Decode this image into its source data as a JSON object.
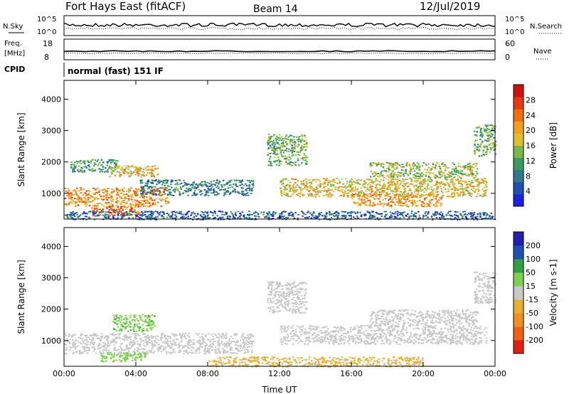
{
  "header": {
    "station": "Fort Hays East (fitACF)",
    "beam": "Beam 14",
    "date": "12/Jul/2019"
  },
  "panels": {
    "noise": {
      "left_label": "N.Sky",
      "right_label": "N.Search",
      "ticks_left": [
        "10^5",
        "10^0"
      ],
      "ticks_right": [
        "10^5",
        "10^0"
      ]
    },
    "freq": {
      "left_label_1": "Freq.",
      "left_label_2": "[MHz]",
      "right_label": "Nave",
      "ticks_left": [
        "18",
        "8"
      ],
      "ticks_right": [
        "60",
        "0"
      ]
    },
    "cpid": {
      "label": "CPID",
      "text": "normal (fast) 151 IF"
    }
  },
  "colors": {
    "power": [
      "#1f1fe0",
      "#1f4fb0",
      "#2f7a8a",
      "#3a9a60",
      "#7ab84a",
      "#e0c030",
      "#f0a020",
      "#f07010",
      "#e83a10",
      "#d01010"
    ],
    "velocity": [
      "#2020b0",
      "#2050b0",
      "#30a040",
      "#80d050",
      "#c8c8c8",
      "#e8b030",
      "#f09020",
      "#f06010",
      "#e02010"
    ]
  },
  "chart_data": [
    {
      "type": "heatmap",
      "title": "",
      "xlabel": "Time UT",
      "ylabel": "Slant Range [km]",
      "x_ticks": [
        "00:00",
        "04:00",
        "08:00",
        "12:00",
        "16:00",
        "20:00",
        "00:00"
      ],
      "y_ticks": [
        "1000",
        "2000",
        "3000",
        "4000"
      ],
      "ylim": [
        180,
        4600
      ],
      "colorbar_label": "Power [dB]",
      "colorbar_ticks": [
        "4",
        "8",
        "12",
        "16",
        "20",
        "24",
        "28"
      ],
      "colorbar_range": [
        0,
        30
      ],
      "regions": [
        {
          "t": [
            0.0,
            5.8
          ],
          "r": [
            600,
            1200
          ],
          "value": 20
        },
        {
          "t": [
            0.3,
            3.0
          ],
          "r": [
            1700,
            2100
          ],
          "value": 10
        },
        {
          "t": [
            2.5,
            5.2
          ],
          "r": [
            1550,
            1900
          ],
          "value": 18
        },
        {
          "t": [
            1.5,
            4.2
          ],
          "r": [
            300,
            600
          ],
          "value": 24
        },
        {
          "t": [
            4.2,
            10.5
          ],
          "r": [
            950,
            1450
          ],
          "value": 8
        },
        {
          "t": [
            11.3,
            13.5
          ],
          "r": [
            1900,
            2900
          ],
          "value": 12
        },
        {
          "t": [
            12.0,
            23.5
          ],
          "r": [
            900,
            1500
          ],
          "value": 17
        },
        {
          "t": [
            16.0,
            21.0
          ],
          "r": [
            600,
            1000
          ],
          "value": 20
        },
        {
          "t": [
            17.0,
            23.0
          ],
          "r": [
            1500,
            2000
          ],
          "value": 14
        },
        {
          "t": [
            22.8,
            24.0
          ],
          "r": [
            2200,
            3200
          ],
          "value": 12
        },
        {
          "t": [
            0.0,
            24.0
          ],
          "r": [
            180,
            450
          ],
          "value": 6
        }
      ]
    },
    {
      "type": "heatmap",
      "title": "",
      "xlabel": "Time UT",
      "ylabel": "Slant Range [km]",
      "x_ticks": [
        "00:00",
        "04:00",
        "08:00",
        "12:00",
        "16:00",
        "20:00",
        "00:00"
      ],
      "y_ticks": [
        "1000",
        "2000",
        "3000",
        "4000"
      ],
      "ylim": [
        180,
        4600
      ],
      "colorbar_label": "Velocity [m s-1]",
      "colorbar_ticks": [
        "200",
        "100",
        "50",
        "15",
        "-15",
        "-50",
        "-100",
        "-200"
      ],
      "colorbar_range": [
        -250,
        250
      ],
      "regions": [
        {
          "t": [
            0.0,
            10.5
          ],
          "r": [
            600,
            1250
          ],
          "value": 0
        },
        {
          "t": [
            2.7,
            5.0
          ],
          "r": [
            1300,
            1850
          ],
          "value": 70
        },
        {
          "t": [
            2.0,
            4.5
          ],
          "r": [
            350,
            650
          ],
          "value": 60
        },
        {
          "t": [
            11.3,
            13.5
          ],
          "r": [
            1900,
            2900
          ],
          "value": 0
        },
        {
          "t": [
            12.0,
            23.5
          ],
          "r": [
            900,
            1500
          ],
          "value": 0
        },
        {
          "t": [
            17.0,
            23.0
          ],
          "r": [
            1500,
            2000
          ],
          "value": 0
        },
        {
          "t": [
            22.8,
            24.0
          ],
          "r": [
            2200,
            3200
          ],
          "value": 0
        },
        {
          "t": [
            8.0,
            20.0
          ],
          "r": [
            180,
            500
          ],
          "value": -40
        }
      ]
    }
  ]
}
